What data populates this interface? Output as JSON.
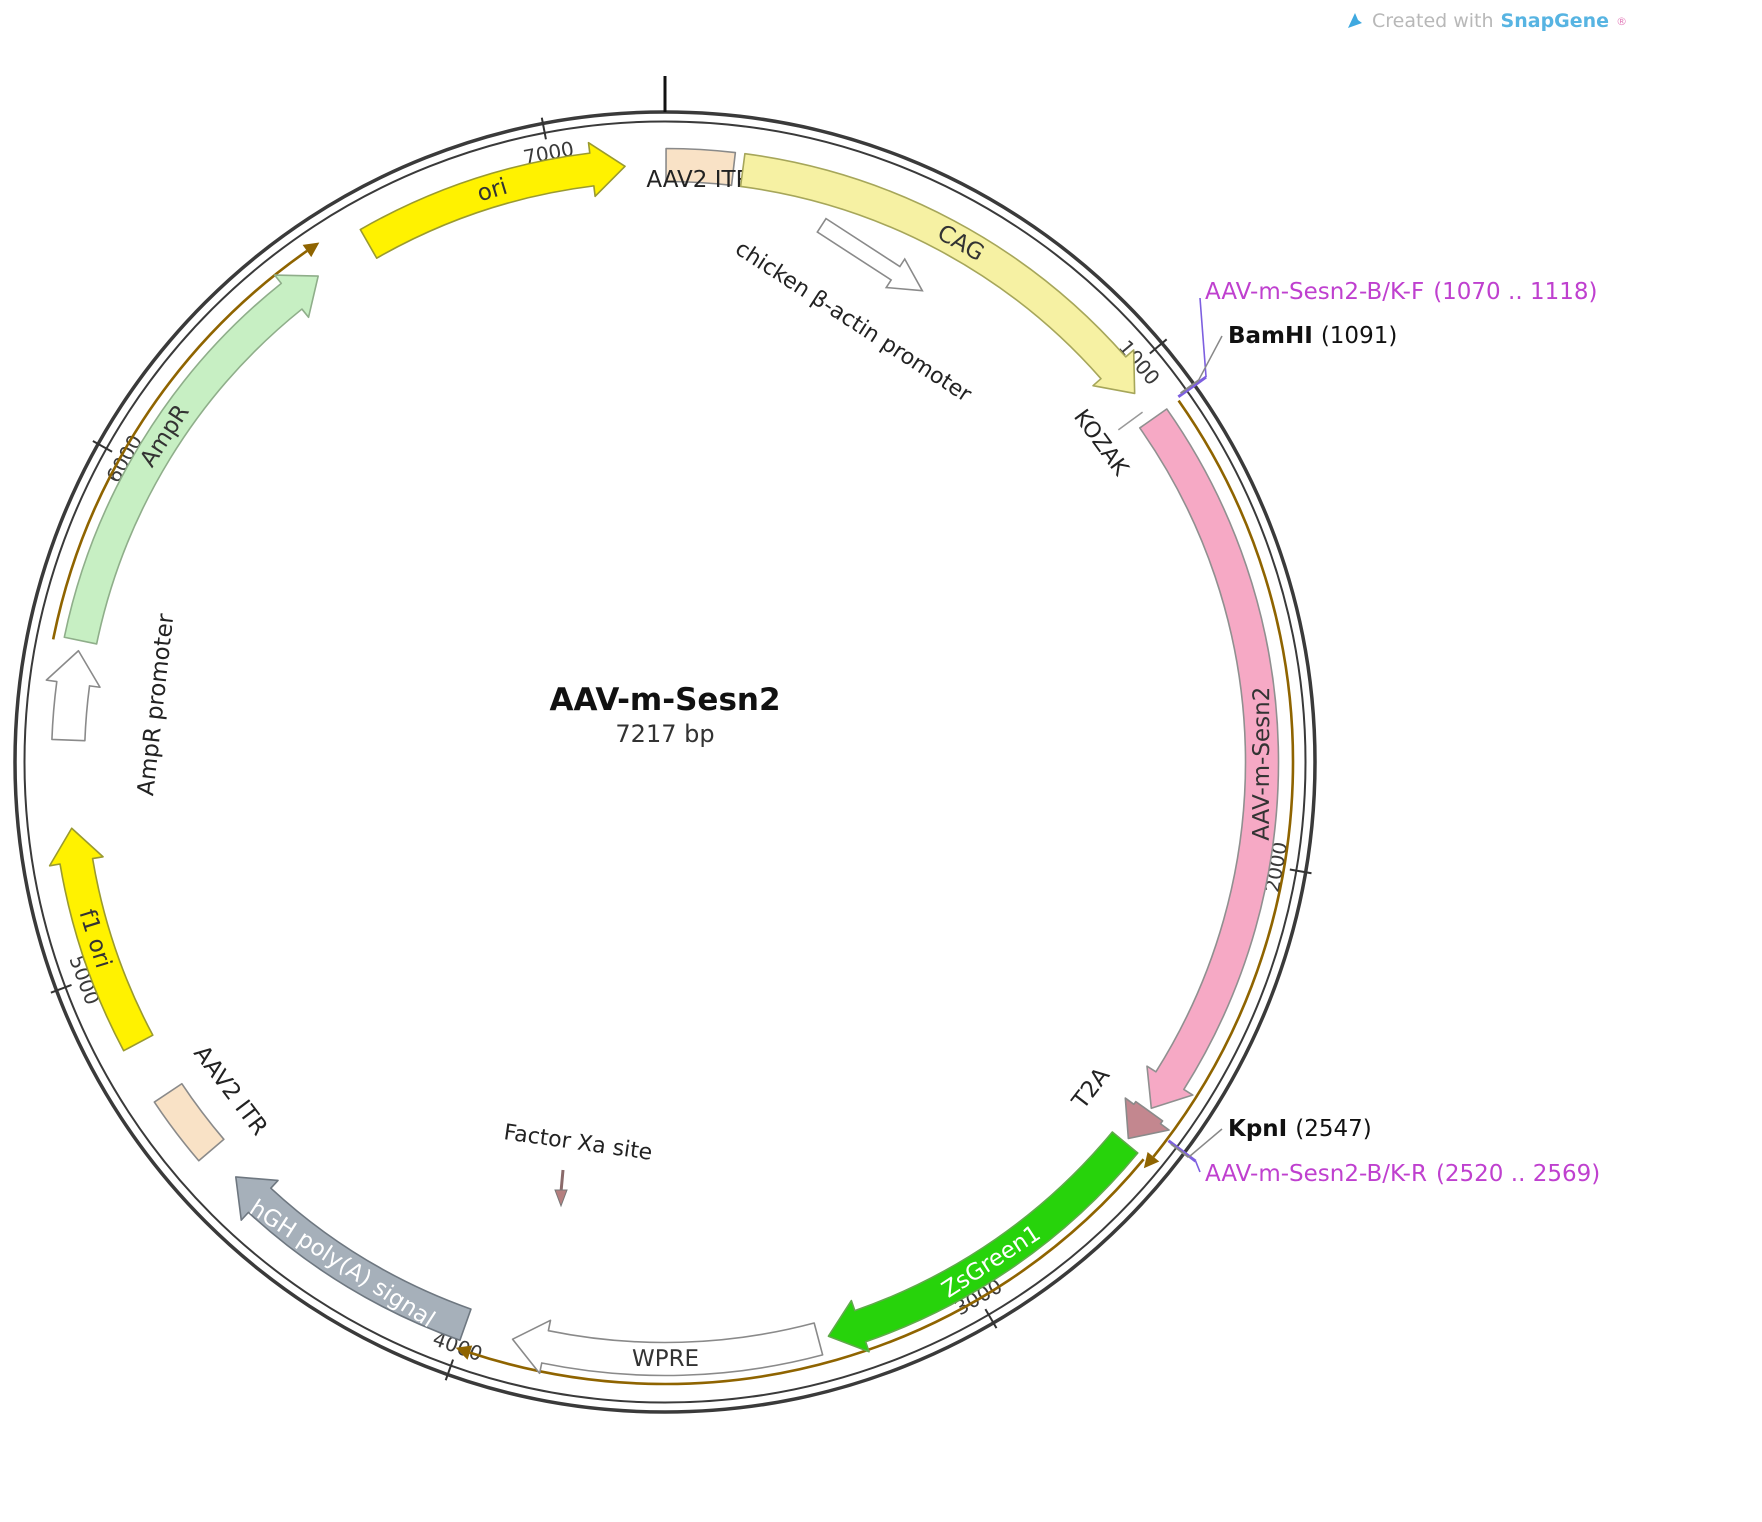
{
  "credit": {
    "prefix": "Created with",
    "brand": "SnapGene",
    "registered": "®"
  },
  "plasmid": {
    "name": "AAV-m-Sesn2",
    "size_label": "7217 bp",
    "total_bp": 7217
  },
  "colors": {
    "backbone": "#3a3a3a",
    "tick": "#333333",
    "orf_arc": "#8f6400",
    "primer_text": "#bf40cf",
    "primer_tick": "#7d5fe0",
    "enzyme_leader": "#888888"
  },
  "ticks": [
    {
      "bp": 1000,
      "label": "1000"
    },
    {
      "bp": 2000,
      "label": "2000"
    },
    {
      "bp": 3000,
      "label": "3000"
    },
    {
      "bp": 4000,
      "label": "4000"
    },
    {
      "bp": 5000,
      "label": "5000"
    },
    {
      "bp": 6000,
      "label": "6000"
    },
    {
      "bp": 7000,
      "label": "7000"
    }
  ],
  "features": [
    {
      "id": "aav2-itr-top",
      "label": "AAV2 ITR",
      "start": 2,
      "end": 132,
      "shape": "box",
      "fill": "#f9e2c6",
      "stroke": "#8a8a8a",
      "label_mode": "horizontal-below",
      "label_color": "#222222"
    },
    {
      "id": "cag",
      "label": "CAG",
      "start": 150,
      "end": 1040,
      "shape": "arrow",
      "fill": "#f6f1a3",
      "stroke": "#a6a65a",
      "label_mode": "on",
      "label_color": "#333333"
    },
    {
      "id": "aav-m-sesn2",
      "label": "AAV-m-Sesn2",
      "start": 1100,
      "end": 2515,
      "shape": "arrow",
      "fill": "#f6a9c5",
      "stroke": "#909090",
      "label_mode": "on",
      "label_color": "#333333"
    },
    {
      "id": "t2a",
      "label": "T2A",
      "start": 2522,
      "end": 2588,
      "shape": "arrow",
      "fill": "#c3878f",
      "stroke": "#8a8a8a",
      "label_mode": "inside",
      "label_r": 537,
      "label_color": "#222222"
    },
    {
      "id": "zsgreen1",
      "label": "ZsGreen1",
      "start": 2598,
      "end": 3290,
      "shape": "arrow",
      "fill": "#27d30b",
      "stroke": "#5faa4a",
      "label_mode": "on",
      "label_color": "#ffffff"
    },
    {
      "id": "wpre",
      "label": "WPRE",
      "start": 3310,
      "end": 3905,
      "shape": "arrow",
      "fill": "#ffffff",
      "stroke": "#8a8a8a",
      "label_mode": "on",
      "label_color": "#333333"
    },
    {
      "id": "hgh-polya",
      "label": "hGH poly(A) signal",
      "start": 4000,
      "end": 4530,
      "shape": "arrow",
      "fill": "#a6b0ba",
      "stroke": "#6e7780",
      "label_mode": "on",
      "label_color": "#ffffff"
    },
    {
      "id": "aav2-itr-left",
      "label": "AAV2 ITR",
      "start": 4600,
      "end": 4738,
      "shape": "box",
      "fill": "#f9e2c6",
      "stroke": "#8a8a8a",
      "label_mode": "inside",
      "label_r": 545,
      "label_color": "#222222"
    },
    {
      "id": "f1-ori",
      "label": "f1 ori",
      "start": 4850,
      "end": 5285,
      "shape": "arrow",
      "fill": "#fff200",
      "stroke": "#9a9a30",
      "label_mode": "on",
      "label_color": "#333333"
    },
    {
      "id": "ampr-promoter",
      "label": "AmpR promoter",
      "start": 5455,
      "end": 5628,
      "shape": "arrow",
      "fill": "#ffffff",
      "stroke": "#8a8a8a",
      "label_mode": "inside",
      "label_r": 512,
      "label_color": "#222222"
    },
    {
      "id": "ampr",
      "label": "AmpR",
      "start": 5648,
      "end": 6505,
      "shape": "arrow",
      "fill": "#c7efc3",
      "stroke": "#8fae8a",
      "label_mode": "on",
      "label_color": "#333333"
    },
    {
      "id": "ori",
      "label": "ori",
      "start": 6620,
      "end": 7140,
      "shape": "arrow",
      "fill": "#fff200",
      "stroke": "#9a9a30",
      "label_mode": "on",
      "label_color": "#333333"
    }
  ],
  "orf_arcs": [
    {
      "start": 1100,
      "end": 2585,
      "r": 628
    },
    {
      "start": 2600,
      "end": 3975,
      "r": 622
    },
    {
      "start": 5640,
      "end": 6515,
      "r": 624
    }
  ],
  "annotations": {
    "chicken_promoter": {
      "label": "chicken β-actin promoter"
    },
    "factor_xa": {
      "label": "Factor Xa site"
    },
    "kozak": {
      "label": "KOZAK",
      "bp": 1078
    }
  },
  "primers": [
    {
      "name": "AAV-m-Sesn2-B/K-F",
      "range": "(1070 .. 1118)",
      "bp": 1094
    },
    {
      "name": "AAV-m-Sesn2-B/K-R",
      "range": "(2520 .. 2569)",
      "bp": 2545
    }
  ],
  "enzymes": [
    {
      "name": "BamHI",
      "pos": "(1091)",
      "bp": 1091
    },
    {
      "name": "KpnI",
      "pos": "(2547)",
      "bp": 2547
    }
  ]
}
